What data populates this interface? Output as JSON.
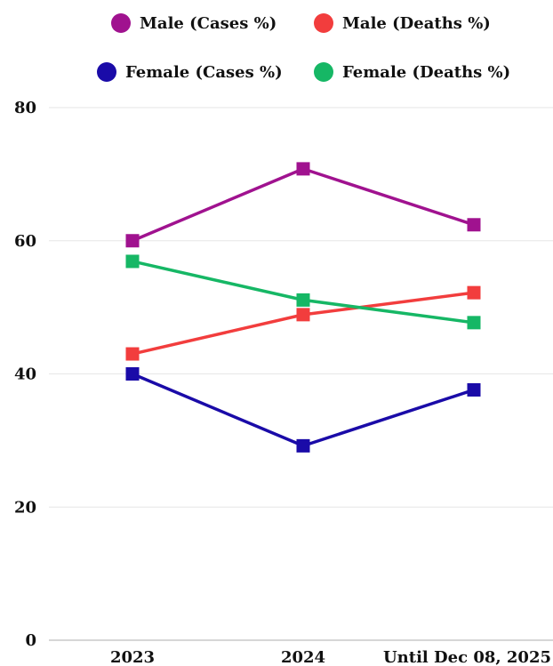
{
  "chart_data": {
    "type": "line",
    "title": "",
    "xlabel": "",
    "ylabel": "",
    "categories": [
      "2023",
      "2024",
      "Until Dec 08, 2025"
    ],
    "ylim": [
      0,
      80
    ],
    "yticks": [
      0,
      20,
      40,
      60,
      80
    ],
    "grid": "horizontal",
    "legend_position": "top",
    "series": [
      {
        "name": "Male (Cases %)",
        "color": "#A0128F",
        "marker": "square",
        "values": [
          60.0,
          70.8,
          62.4
        ]
      },
      {
        "name": "Male (Deaths %)",
        "color": "#F23D3D",
        "marker": "square",
        "values": [
          43.0,
          48.9,
          52.2
        ]
      },
      {
        "name": "Female (Cases %)",
        "color": "#1A0BA8",
        "marker": "square",
        "values": [
          40.0,
          29.2,
          37.6
        ]
      },
      {
        "name": "Female (Deaths %)",
        "color": "#16B765",
        "marker": "square",
        "values": [
          56.9,
          51.1,
          47.7
        ]
      }
    ]
  }
}
